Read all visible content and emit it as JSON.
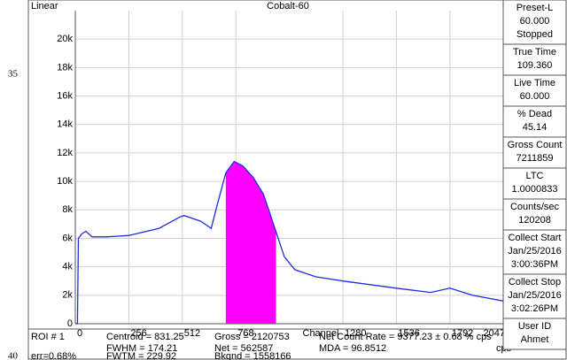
{
  "side_labels": [
    "35",
    "40"
  ],
  "chart_data": {
    "type": "line",
    "scale_label": "Linear",
    "title": "Cobalt-60",
    "x_label": "Channel",
    "series": [
      {
        "color": "#1f2de0",
        "x": [
          0,
          10,
          15,
          30,
          50,
          80,
          150,
          256,
          400,
          500,
          520,
          600,
          650,
          680,
          720,
          760,
          800,
          850,
          900,
          950,
          1000,
          1050,
          1150,
          1280,
          1536,
          1700,
          1792,
          1900,
          2047
        ],
        "values": [
          0,
          0,
          6000,
          6300,
          6500,
          6100,
          6100,
          6200,
          6700,
          7500,
          7600,
          7200,
          6700,
          8400,
          10600,
          11400,
          11100,
          10300,
          9100,
          6900,
          4700,
          3800,
          3300,
          3000,
          2500,
          2200,
          2500,
          2000,
          1600
        ]
      }
    ],
    "roi": {
      "start": 720,
      "end": 960,
      "color": "#ff00ff"
    },
    "xlim": [
      0,
      2047
    ],
    "ylim": [
      0,
      22000
    ],
    "xticks": [
      0,
      256,
      512,
      768,
      1280,
      1536,
      1792,
      2047
    ],
    "yticks": [
      0,
      {
        "value": 2000,
        "label": "2k"
      },
      {
        "value": 4000,
        "label": "4k"
      },
      {
        "value": 6000,
        "label": "6k"
      },
      {
        "value": 8000,
        "label": "8k"
      },
      {
        "value": 10000,
        "label": "10k"
      },
      {
        "value": 12000,
        "label": "12k"
      },
      {
        "value": 14000,
        "label": "14k"
      },
      {
        "value": 16000,
        "label": "16k"
      },
      {
        "value": 18000,
        "label": "18k"
      },
      {
        "value": 20000,
        "label": "20k"
      }
    ],
    "grid": true
  },
  "status_panel": [
    {
      "label": "Preset-L",
      "lines": [
        "60.000",
        "Stopped"
      ]
    },
    {
      "label": "True Time",
      "lines": [
        "109.360"
      ]
    },
    {
      "label": "Live Time",
      "lines": [
        "60.000"
      ]
    },
    {
      "label": "% Dead",
      "lines": [
        "45.14"
      ]
    },
    {
      "label": "Gross Count",
      "lines": [
        "7211859"
      ]
    },
    {
      "label": "LTC",
      "lines": [
        "1.0000833"
      ]
    },
    {
      "label": "Counts/sec",
      "lines": [
        "120208"
      ]
    },
    {
      "label": "Collect Start",
      "lines": [
        "Jan/25/2016",
        "3:00:36PM"
      ]
    },
    {
      "label": "Collect Stop",
      "lines": [
        "Jan/25/2016",
        "3:02:26PM"
      ]
    },
    {
      "label": "User ID",
      "lines": [
        "Ahmet"
      ]
    }
  ],
  "roi_report": {
    "roi": "ROI # 1",
    "error": "err=0.68%",
    "centroid": "Centroid = 831.25",
    "fwhm": "FWHM = 174.21",
    "fwtm": "FWTM = 229.92",
    "gross": "Gross = 2120753",
    "net": "Net = 562587",
    "bkgnd": "Bkgnd = 1558166",
    "net_rate": "Net Count Rate = 9377.23 ± 0.68 % cps",
    "mda": "MDA = 96.8512",
    "mda_unit": "cps"
  }
}
